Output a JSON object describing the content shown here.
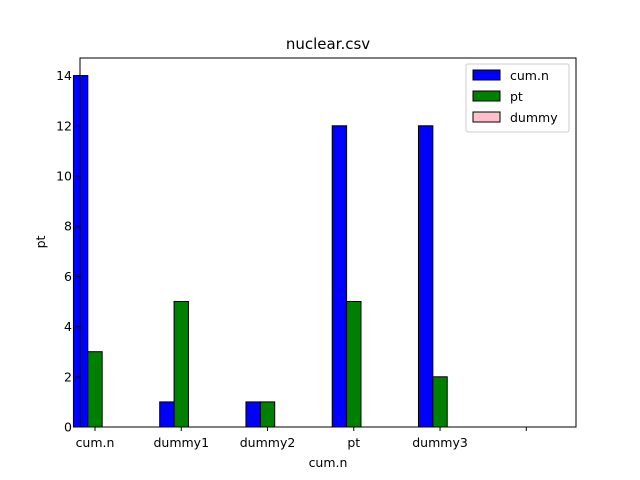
{
  "chart_data": {
    "type": "bar",
    "title": "nuclear.csv",
    "xlabel": "cum.n",
    "ylabel": "pt",
    "categories": [
      "cum.n",
      "dummy1",
      "dummy2",
      "pt",
      "dummy3",
      ""
    ],
    "series": [
      {
        "name": "cum.n",
        "color": "#0000ff",
        "values": [
          14,
          1,
          1,
          12,
          12,
          0
        ]
      },
      {
        "name": "pt",
        "color": "#008000",
        "values": [
          3,
          5,
          1,
          5,
          2,
          0
        ]
      },
      {
        "name": "dummy",
        "color": "#ffc0cb",
        "values": [
          0,
          0,
          0,
          0,
          0,
          0
        ]
      }
    ],
    "ylim": [
      0,
      14.7
    ],
    "yticks": [
      0,
      2,
      4,
      6,
      8,
      10,
      12,
      14
    ],
    "grid": false,
    "legend_position": "top-right"
  }
}
